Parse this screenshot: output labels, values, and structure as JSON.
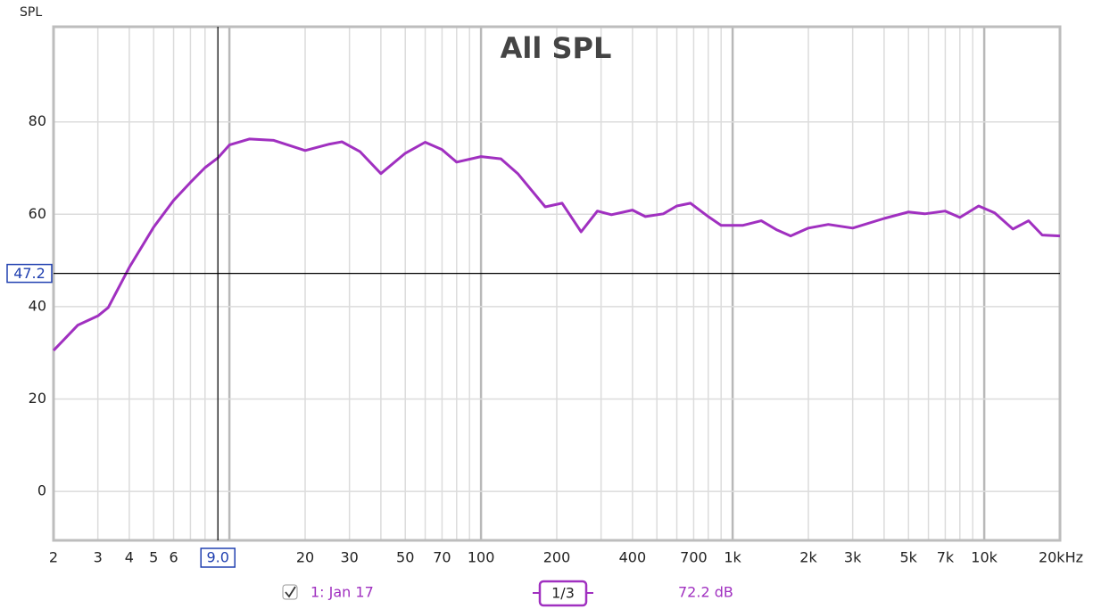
{
  "chart_data": {
    "type": "line",
    "title": "All SPL",
    "y_label": "SPL",
    "x_scale": "log",
    "xlim": [
      2,
      20000
    ],
    "ylim": [
      -10.6,
      100.6
    ],
    "xticks": [
      2,
      3,
      4,
      5,
      6,
      20,
      30,
      50,
      70,
      100,
      200,
      400,
      700,
      {
        "value": 1000,
        "label": "1k"
      },
      {
        "value": 2000,
        "label": "2k"
      },
      {
        "value": 3000,
        "label": "3k"
      },
      {
        "value": 5000,
        "label": "5k"
      },
      {
        "value": 7000,
        "label": "7k"
      },
      {
        "value": 10000,
        "label": "10k"
      },
      {
        "value": 20000,
        "label": "20kHz"
      }
    ],
    "xgrid": [
      2,
      3,
      4,
      5,
      6,
      7,
      8,
      9,
      10,
      20,
      30,
      40,
      50,
      60,
      70,
      80,
      90,
      100,
      200,
      300,
      400,
      500,
      600,
      700,
      800,
      900,
      1000,
      2000,
      3000,
      4000,
      5000,
      6000,
      7000,
      8000,
      9000,
      10000,
      20000
    ],
    "yticks": [
      0,
      20,
      40,
      60,
      80
    ],
    "grid": true,
    "cursor": {
      "x": {
        "value": 9,
        "label": "9.0"
      },
      "y": {
        "value": 47.2,
        "label": "47.2"
      }
    },
    "readout": {
      "value": 72.2,
      "label": "72.2 dB"
    },
    "smoothing": "1/3",
    "x": [
      2,
      2.5,
      3,
      3.3,
      4,
      5,
      6,
      7,
      8,
      9,
      10,
      12,
      15,
      20,
      25,
      28,
      33,
      40,
      50,
      60,
      70,
      80,
      100,
      120,
      140,
      180,
      210,
      250,
      290,
      330,
      400,
      450,
      530,
      600,
      680,
      800,
      900,
      1100,
      1300,
      1500,
      1700,
      2000,
      2400,
      3000,
      4000,
      5000,
      5800,
      7000,
      8000,
      9500,
      11000,
      13000,
      15000,
      17000,
      20000
    ],
    "series": [
      {
        "name": "1: Jan 17",
        "color": "#a030c0",
        "values": [
          30.5,
          36,
          38,
          39.8,
          48.5,
          57.2,
          63,
          66.9,
          70.1,
          72.2,
          75,
          76.3,
          76,
          73.8,
          75.2,
          75.7,
          73.6,
          68.8,
          73.2,
          75.6,
          74,
          71.3,
          72.5,
          72,
          68.8,
          61.6,
          62.4,
          56.2,
          60.7,
          59.9,
          60.9,
          59.5,
          60.1,
          61.8,
          62.4,
          59.5,
          57.6,
          57.6,
          58.6,
          56.6,
          55.3,
          57,
          57.8,
          57,
          59.1,
          60.5,
          60.1,
          60.7,
          59.3,
          61.8,
          60.3,
          56.8,
          58.6,
          55.5,
          55.3
        ]
      }
    ]
  }
}
